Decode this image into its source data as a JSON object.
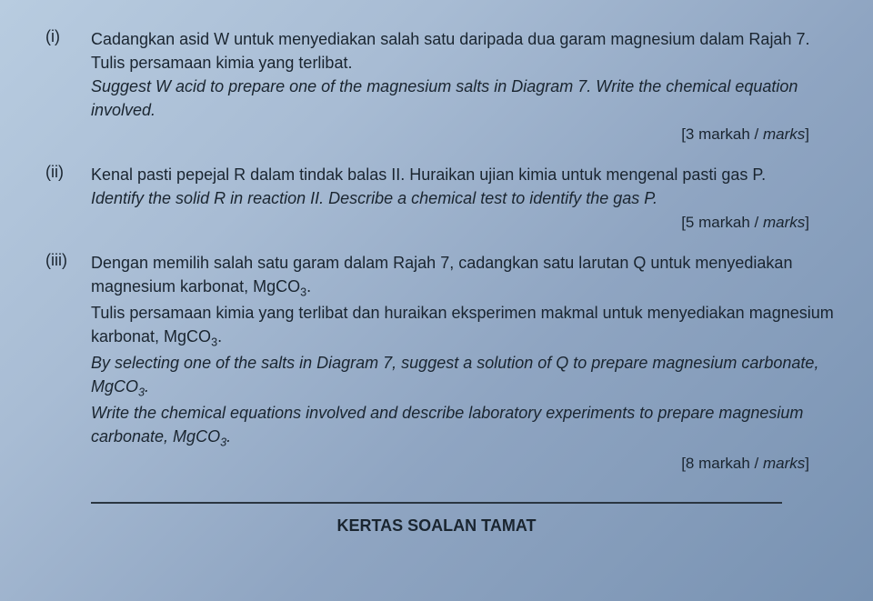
{
  "questions": [
    {
      "num": "(i)",
      "malay1": "Cadangkan asid W untuk menyediakan salah satu daripada dua garam magnesium dalam Rajah 7. Tulis persamaan kimia yang terlibat.",
      "eng1": "Suggest W acid to prepare one of the magnesium salts in Diagram 7. Write the chemical equation involved.",
      "marks_num": "3",
      "marks_word": "markah",
      "marks_word_en": "marks"
    },
    {
      "num": "(ii)",
      "malay1": "Kenal pasti pepejal R dalam tindak balas II. Huraikan ujian kimia untuk mengenal pasti gas P.",
      "eng1": "Identify the solid R in reaction II. Describe a chemical test to identify the gas P.",
      "marks_num": "5",
      "marks_word": "markah",
      "marks_word_en": "marks"
    },
    {
      "num": "(iii)",
      "malay1": "Dengan memilih salah satu garam dalam Rajah 7, cadangkan satu larutan Q untuk menyediakan magnesium karbonat, MgCO",
      "malay2": "Tulis persamaan kimia yang terlibat dan huraikan eksperimen makmal untuk menyediakan magnesium karbonat, MgCO",
      "eng1": "By selecting one of the salts in Diagram 7, suggest a solution of Q to prepare magnesium carbonate, MgCO",
      "eng2": "Write the chemical equations involved and describe laboratory experiments to prepare magnesium carbonate, MgCO",
      "sub": "3",
      "marks_num": "8",
      "marks_word": "markah",
      "marks_word_en": "marks"
    }
  ],
  "footer": "KERTAS SOALAN TAMAT"
}
